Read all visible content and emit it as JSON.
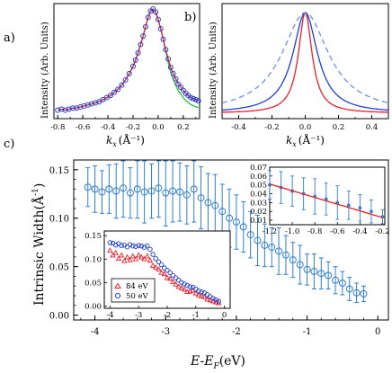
{
  "panel_labels": {
    "a": "a)",
    "b": "b)",
    "c": "c)"
  },
  "chart_data": [
    {
      "panel": "a",
      "type": "scatter",
      "xlabel_main": "k",
      "xlabel_sub": "x",
      "xlabel_unit": "(Å⁻¹)",
      "ylabel": "Intensity (Arb. Units)",
      "xlim": [
        -0.83,
        0.33
      ],
      "xticks": [
        "-0.8",
        "-0.6",
        "-0.4",
        "-0.2",
        "0.0",
        "0.2"
      ],
      "x": [
        -0.8,
        -0.77,
        -0.74,
        -0.71,
        -0.68,
        -0.65,
        -0.62,
        -0.59,
        -0.56,
        -0.53,
        -0.5,
        -0.47,
        -0.44,
        -0.41,
        -0.38,
        -0.35,
        -0.32,
        -0.29,
        -0.26,
        -0.23,
        -0.2,
        -0.18,
        -0.16,
        -0.14,
        -0.12,
        -0.1,
        -0.08,
        -0.06,
        -0.04,
        -0.02,
        0.0,
        0.02,
        0.04,
        0.06,
        0.08,
        0.1,
        0.12,
        0.14,
        0.16,
        0.18,
        0.2,
        0.22,
        0.24,
        0.26,
        0.28,
        0.3,
        0.32
      ],
      "series": [
        {
          "values": [
            0.03,
            0.04,
            0.03,
            0.04,
            0.05,
            0.05,
            0.06,
            0.07,
            0.08,
            0.09,
            0.1,
            0.11,
            0.13,
            0.15,
            0.17,
            0.2,
            0.23,
            0.27,
            0.32,
            0.38,
            0.45,
            0.51,
            0.58,
            0.66,
            0.74,
            0.83,
            0.92,
            0.98,
            1.0,
            0.97,
            0.9,
            0.81,
            0.71,
            0.61,
            0.52,
            0.44,
            0.38,
            0.33,
            0.28,
            0.25,
            0.22,
            0.19,
            0.17,
            0.15,
            0.14,
            0.13,
            0.12
          ],
          "color": "#1f3fd6"
        }
      ],
      "fits": [
        {
          "color": "#e8202a"
        },
        {
          "color": "#2fc02f"
        }
      ]
    },
    {
      "panel": "b",
      "type": "line",
      "xlabel_main": "k",
      "xlabel_sub": "x",
      "xlabel_unit": "(Å⁻¹)",
      "ylabel": "Intensity (Arb. Units)",
      "xlim": [
        -0.5,
        0.5
      ],
      "xticks": [
        "-0.4",
        "-0.2",
        "0.0",
        "0.2",
        "0.4"
      ],
      "series": [
        {
          "style": "solid",
          "color": "#e8202a",
          "gamma": 0.05
        },
        {
          "style": "solid",
          "color": "#1f3fd6",
          "gamma": 0.09
        },
        {
          "style": "dashed",
          "color": "#6a8fe6",
          "gamma": 0.17
        }
      ]
    },
    {
      "panel": "c",
      "type": "scatter",
      "xlabel_main": "E-E",
      "xlabel_sub": "F",
      "xlabel_unit": "(eV)",
      "ylabel_main": "Intrinsic Width(Å",
      "ylabel_sup": "-1",
      "ylabel_close": ")",
      "xlim": [
        -4.3,
        0.15
      ],
      "ylim": [
        -0.005,
        0.16
      ],
      "xticks": [
        "-4",
        "-3",
        "-2",
        "-1",
        "0"
      ],
      "yticks": [
        "0.00",
        "0.05",
        "0.10",
        "0.15"
      ],
      "x": [
        -4.1,
        -4.0,
        -3.9,
        -3.8,
        -3.7,
        -3.6,
        -3.5,
        -3.4,
        -3.3,
        -3.2,
        -3.1,
        -3.0,
        -2.9,
        -2.8,
        -2.7,
        -2.6,
        -2.5,
        -2.4,
        -2.3,
        -2.2,
        -2.1,
        -2.0,
        -1.9,
        -1.8,
        -1.7,
        -1.6,
        -1.5,
        -1.4,
        -1.3,
        -1.2,
        -1.1,
        -1.0,
        -0.9,
        -0.8,
        -0.7,
        -0.6,
        -0.5,
        -0.4,
        -0.3,
        -0.2
      ],
      "series": [
        {
          "values": [
            0.132,
            0.13,
            0.127,
            0.13,
            0.128,
            0.131,
            0.126,
            0.13,
            0.127,
            0.128,
            0.131,
            0.126,
            0.128,
            0.127,
            0.124,
            0.13,
            0.121,
            0.116,
            0.113,
            0.107,
            0.1,
            0.096,
            0.091,
            0.083,
            0.077,
            0.072,
            0.07,
            0.066,
            0.062,
            0.057,
            0.052,
            0.047,
            0.045,
            0.043,
            0.041,
            0.036,
            0.033,
            0.027,
            0.023,
            0.022
          ],
          "errors": [
            0.02,
            0.024,
            0.022,
            0.025,
            0.028,
            0.03,
            0.026,
            0.03,
            0.032,
            0.028,
            0.03,
            0.034,
            0.032,
            0.03,
            0.03,
            0.034,
            0.032,
            0.03,
            0.032,
            0.028,
            0.03,
            0.028,
            0.026,
            0.024,
            0.026,
            0.022,
            0.02,
            0.024,
            0.02,
            0.018,
            0.02,
            0.016,
            0.018,
            0.016,
            0.014,
            0.014,
            0.012,
            0.012,
            0.01,
            0.008
          ],
          "color": "#2f7fd0"
        }
      ]
    },
    {
      "panel": "c-inset-left",
      "type": "scatter",
      "xlim": [
        -4.2,
        0.2
      ],
      "ylim": [
        -0.005,
        0.16
      ],
      "xticks": [
        "-4",
        "-3",
        "-2",
        "-1",
        "0"
      ],
      "yticks": [
        "0.00",
        "0.05",
        "0.10",
        "0.15"
      ],
      "legend": [
        "84 eV",
        "50 eV"
      ],
      "legend_placement": "bottom-left",
      "x": [
        -4.0,
        -3.9,
        -3.8,
        -3.7,
        -3.6,
        -3.5,
        -3.4,
        -3.3,
        -3.2,
        -3.1,
        -3.0,
        -2.9,
        -2.8,
        -2.7,
        -2.6,
        -2.5,
        -2.4,
        -2.3,
        -2.2,
        -2.1,
        -2.0,
        -1.9,
        -1.8,
        -1.7,
        -1.6,
        -1.5,
        -1.4,
        -1.3,
        -1.2,
        -1.1,
        -1.0,
        -0.9,
        -0.8,
        -0.7,
        -0.6,
        -0.5,
        -0.4,
        -0.3,
        -0.2
      ],
      "series": [
        {
          "name": "84 eV",
          "marker": "triangle",
          "color": "#e8202a",
          "values": [
            0.118,
            0.108,
            0.113,
            0.101,
            0.108,
            0.096,
            0.104,
            0.098,
            0.106,
            0.1,
            0.108,
            0.104,
            0.1,
            0.106,
            0.097,
            0.086,
            0.082,
            0.078,
            0.071,
            0.068,
            0.06,
            0.058,
            0.051,
            0.046,
            0.041,
            0.038,
            0.035,
            0.03,
            0.031,
            0.033,
            0.027,
            0.023,
            0.021,
            0.019,
            0.014,
            0.012,
            0.01,
            0.008,
            0.006
          ]
        },
        {
          "name": "50 eV",
          "marker": "circle",
          "color": "#1f3fd6",
          "values": [
            0.135,
            0.134,
            0.13,
            0.133,
            0.129,
            0.13,
            0.126,
            0.131,
            0.128,
            0.127,
            0.129,
            0.128,
            0.125,
            0.128,
            0.121,
            0.11,
            0.101,
            0.094,
            0.088,
            0.081,
            0.076,
            0.071,
            0.065,
            0.06,
            0.055,
            0.05,
            0.047,
            0.044,
            0.041,
            0.04,
            0.036,
            0.032,
            0.03,
            0.028,
            0.024,
            0.02,
            0.016,
            0.013,
            0.01
          ]
        }
      ]
    },
    {
      "panel": "c-inset-right",
      "type": "scatter",
      "xlim": [
        -1.2,
        -0.18
      ],
      "ylim": [
        0.005,
        0.07
      ],
      "xticks": [
        "-1.2",
        "-1.0",
        "-0.8",
        "-0.6",
        "-0.4",
        "-0.2"
      ],
      "yticks": [
        "0.01",
        "0.02",
        "0.03",
        "0.04",
        "0.05",
        "0.06",
        "0.07"
      ],
      "x": [
        -1.2,
        -1.1,
        -1.0,
        -0.9,
        -0.8,
        -0.7,
        -0.6,
        -0.5,
        -0.4,
        -0.3,
        -0.2
      ],
      "series": [
        {
          "values": [
            0.05,
            0.047,
            0.043,
            0.04,
            0.037,
            0.034,
            0.03,
            0.027,
            0.024,
            0.02,
            0.014
          ],
          "errors": [
            0.016,
            0.018,
            0.017,
            0.018,
            0.02,
            0.018,
            0.019,
            0.016,
            0.015,
            0.013,
            0.008
          ],
          "color": "#2f7fd0"
        }
      ],
      "fit": {
        "x": [
          -1.2,
          -0.2
        ],
        "y": [
          0.051,
          0.013
        ],
        "color": "#e8202a"
      }
    }
  ]
}
